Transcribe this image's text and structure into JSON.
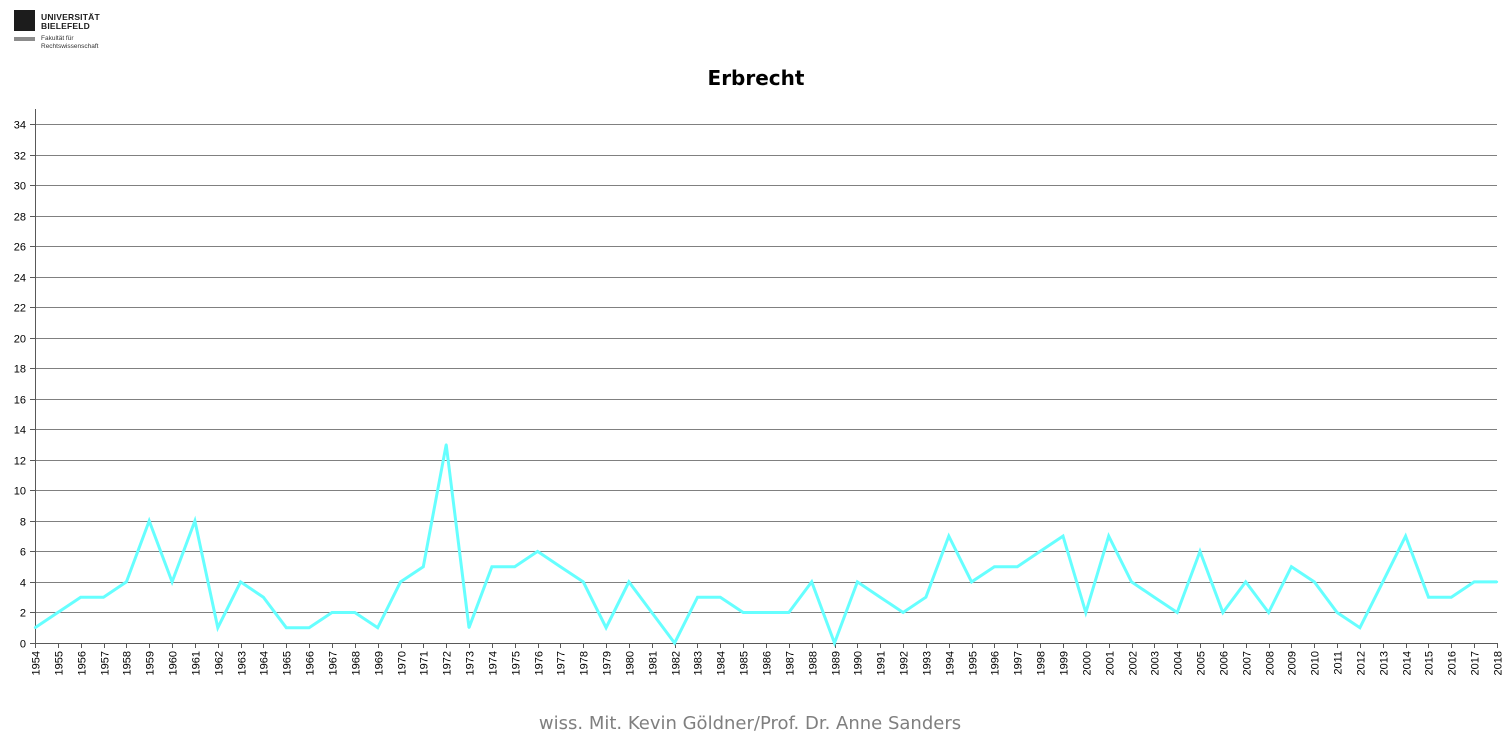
{
  "logo": {
    "name_line1": "UNIVERSITÄT",
    "name_line2": "BIELEFELD",
    "faculty_line1": "Fakultät für",
    "faculty_line2": "Rechtswissenschaft"
  },
  "footer": "wiss. Mit. Kevin Göldner/Prof.  Dr. Anne Sanders",
  "colors": {
    "line": "#66FFFF",
    "grid": "#808080",
    "axis": "#595959"
  },
  "chart_data": {
    "type": "line",
    "title": "Erbrecht",
    "xlabel": "",
    "ylabel": "",
    "ylim": [
      0,
      34
    ],
    "yticks": [
      0,
      2,
      4,
      6,
      8,
      10,
      12,
      14,
      16,
      18,
      20,
      22,
      24,
      26,
      28,
      30,
      32,
      34
    ],
    "grid": true,
    "legend": "none",
    "x": [
      "1954",
      "1955",
      "1956",
      "1957",
      "1958",
      "1959",
      "1960",
      "1961",
      "1962",
      "1963",
      "1964",
      "1965",
      "1966",
      "1967",
      "1968",
      "1969",
      "1970",
      "1971",
      "1972",
      "1973",
      "1974",
      "1975",
      "1976",
      "1977",
      "1978",
      "1979",
      "1980",
      "1981",
      "1982",
      "1983",
      "1984",
      "1985",
      "1986",
      "1987",
      "1988",
      "1989",
      "1990",
      "1991",
      "1992",
      "1993",
      "1994",
      "1995",
      "1996",
      "1997",
      "1998",
      "1999",
      "2000",
      "2001",
      "2002",
      "2003",
      "2004",
      "2005",
      "2006",
      "2007",
      "2008",
      "2009",
      "2010",
      "2011",
      "2012",
      "2013",
      "2014",
      "2015",
      "2016",
      "2017",
      "2018"
    ],
    "series": [
      {
        "values": [
          1,
          2,
          3,
          3,
          4,
          8,
          4,
          8,
          1,
          4,
          3,
          1,
          1,
          2,
          2,
          1,
          4,
          5,
          13,
          1,
          5,
          5,
          6,
          5,
          4,
          1,
          4,
          2,
          0,
          3,
          3,
          2,
          2,
          2,
          4,
          0,
          4,
          3,
          2,
          3,
          7,
          4,
          5,
          5,
          6,
          7,
          2,
          7,
          4,
          3,
          2,
          6,
          2,
          4,
          2,
          5,
          4,
          2,
          1,
          4,
          7,
          3,
          3,
          4,
          4
        ]
      }
    ]
  }
}
